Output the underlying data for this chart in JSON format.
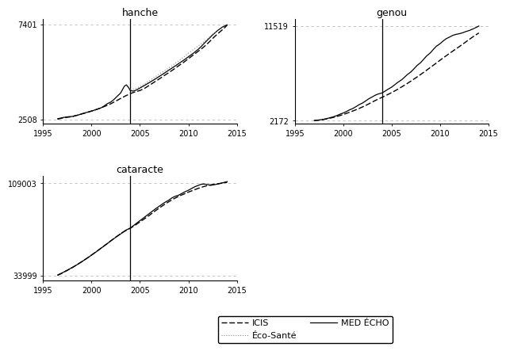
{
  "hanche": {
    "title": "hanche",
    "yticks": [
      2508,
      7401
    ],
    "ylim": [
      2300,
      7700
    ],
    "vline": 2004,
    "xlim": [
      1995,
      2015
    ],
    "xticks": [
      1995,
      2000,
      2005,
      2010,
      2015
    ],
    "hlines": [
      2508,
      7401
    ],
    "med_echo_x": [
      1996.5,
      1997,
      1997.5,
      1998,
      1998.3,
      1998.6,
      1999,
      1999.5,
      2000,
      2000.5,
      2001,
      2001.3,
      2001.6,
      2002,
      2002.3,
      2002.6,
      2003,
      2003.2,
      2003.4,
      2003.6,
      2003.8,
      2004.0,
      2004.3,
      2004.6,
      2005,
      2005.5,
      2006,
      2006.5,
      2007,
      2007.5,
      2008,
      2008.5,
      2009,
      2009.5,
      2010,
      2010.5,
      2011,
      2011.3,
      2011.6,
      2012,
      2012.5,
      2013,
      2013.5,
      2014
    ],
    "med_echo_y": [
      2540,
      2600,
      2640,
      2660,
      2700,
      2730,
      2800,
      2870,
      2940,
      3020,
      3110,
      3200,
      3310,
      3410,
      3530,
      3680,
      3870,
      4050,
      4230,
      4290,
      4170,
      4000,
      3970,
      4020,
      4130,
      4270,
      4420,
      4570,
      4730,
      4890,
      5060,
      5220,
      5390,
      5560,
      5740,
      5920,
      6120,
      6260,
      6420,
      6620,
      6870,
      7090,
      7270,
      7390
    ],
    "icis_x": [
      1996.5,
      1997,
      1997.5,
      1998,
      1998.5,
      1999,
      1999.5,
      2000,
      2000.5,
      2001,
      2001.5,
      2002,
      2002.5,
      2003,
      2003.5,
      2004,
      2004.5,
      2005,
      2005.5,
      2006,
      2006.5,
      2007,
      2007.5,
      2008,
      2008.5,
      2009,
      2009.5,
      2010,
      2010.5,
      2011,
      2011.5,
      2012,
      2012.5,
      2013,
      2013.5,
      2014
    ],
    "icis_y": [
      2520,
      2580,
      2620,
      2650,
      2720,
      2790,
      2860,
      2940,
      3020,
      3110,
      3210,
      3320,
      3450,
      3590,
      3720,
      3840,
      3930,
      4000,
      4120,
      4280,
      4440,
      4600,
      4770,
      4930,
      5100,
      5280,
      5450,
      5640,
      5830,
      6020,
      6210,
      6430,
      6680,
      6920,
      7130,
      7370
    ],
    "eco_sante_x": [
      2004.0,
      2004.5,
      2005,
      2005.5,
      2006,
      2006.5,
      2007,
      2007.5,
      2008,
      2008.5,
      2009,
      2009.5,
      2010,
      2010.5,
      2011,
      2011.5,
      2012,
      2012.5,
      2013
    ],
    "eco_sante_y": [
      4050,
      4100,
      4200,
      4350,
      4510,
      4680,
      4850,
      5010,
      5170,
      5350,
      5530,
      5720,
      5920,
      6110,
      6290,
      6480,
      6680,
      6900,
      7100
    ]
  },
  "genou": {
    "title": "genou",
    "yticks": [
      2172,
      11519
    ],
    "ylim": [
      1900,
      12200
    ],
    "vline": 2004,
    "xlim": [
      1995,
      2015
    ],
    "xticks": [
      1995,
      2000,
      2005,
      2010,
      2015
    ],
    "hlines": [
      2172,
      11519
    ],
    "med_echo_x": [
      1997,
      1997.5,
      1998,
      1998.3,
      1998.6,
      1999,
      1999.3,
      1999.6,
      2000,
      2000.3,
      2000.6,
      2001,
      2001.3,
      2001.6,
      2002,
      2002.3,
      2002.6,
      2003,
      2003.3,
      2003.6,
      2004,
      2004.3,
      2004.6,
      2005,
      2005.3,
      2005.6,
      2006,
      2006.3,
      2006.6,
      2007,
      2007.3,
      2007.6,
      2008,
      2008.3,
      2008.6,
      2009,
      2009.3,
      2009.6,
      2010,
      2010.3,
      2010.6,
      2011,
      2011.3,
      2011.6,
      2012,
      2012.3,
      2012.6,
      2013,
      2013.5,
      2014
    ],
    "med_echo_y": [
      2190,
      2240,
      2310,
      2380,
      2460,
      2560,
      2660,
      2790,
      2930,
      3060,
      3220,
      3380,
      3550,
      3730,
      3920,
      4110,
      4310,
      4520,
      4680,
      4800,
      4900,
      5070,
      5260,
      5480,
      5700,
      5930,
      6180,
      6430,
      6700,
      6990,
      7280,
      7590,
      7900,
      8220,
      8540,
      8860,
      9190,
      9490,
      9760,
      10010,
      10230,
      10420,
      10570,
      10660,
      10740,
      10820,
      10930,
      11050,
      11250,
      11490
    ],
    "icis_x": [
      1997,
      1997.5,
      1998,
      1998.5,
      1999,
      1999.5,
      2000,
      2000.5,
      2001,
      2001.5,
      2002,
      2002.5,
      2003,
      2003.5,
      2004,
      2004.5,
      2005,
      2005.5,
      2006,
      2006.5,
      2007,
      2007.5,
      2008,
      2008.5,
      2009,
      2009.5,
      2010,
      2010.5,
      2011,
      2011.5,
      2012,
      2012.5,
      2013,
      2013.5,
      2014
    ],
    "icis_y": [
      2180,
      2230,
      2300,
      2390,
      2500,
      2630,
      2780,
      2950,
      3130,
      3320,
      3530,
      3760,
      4010,
      4250,
      4470,
      4700,
      4940,
      5200,
      5480,
      5770,
      6080,
      6400,
      6730,
      7070,
      7420,
      7770,
      8130,
      8480,
      8820,
      9150,
      9480,
      9820,
      10170,
      10500,
      10810
    ]
  },
  "cataracte": {
    "title": "cataracte",
    "yticks": [
      33999,
      109003
    ],
    "ylim": [
      30000,
      115000
    ],
    "vline": 2004,
    "xlim": [
      1995,
      2015
    ],
    "xticks": [
      1995,
      2000,
      2005,
      2010,
      2015
    ],
    "hlines": [
      33999,
      109003
    ],
    "med_echo_x": [
      1996.5,
      1997,
      1997.5,
      1998,
      1998.5,
      1999,
      1999.5,
      2000,
      2000.5,
      2001,
      2001.5,
      2002,
      2002.5,
      2003,
      2003.3,
      2003.6,
      2004,
      2004.5,
      2005,
      2005.5,
      2006,
      2006.5,
      2007,
      2007.5,
      2008,
      2008.3,
      2008.6,
      2009,
      2009.3,
      2009.6,
      2010,
      2010.3,
      2010.6,
      2011,
      2011.3,
      2011.6,
      2012,
      2012.3,
      2012.6,
      2013,
      2013.5,
      2014
    ],
    "med_echo_y": [
      34300,
      36200,
      38300,
      40400,
      42700,
      45200,
      47800,
      50500,
      53300,
      56200,
      59100,
      62100,
      65000,
      67700,
      69500,
      71000,
      72500,
      75500,
      78500,
      81500,
      84500,
      87500,
      90300,
      93000,
      95300,
      97000,
      98200,
      99200,
      100500,
      101800,
      103200,
      104500,
      105800,
      107100,
      108000,
      108300,
      107800,
      107200,
      107600,
      108200,
      109200,
      110200
    ],
    "icis_x": [
      1996.5,
      1997,
      1997.5,
      1998,
      1998.5,
      1999,
      1999.5,
      2000,
      2000.5,
      2001,
      2001.5,
      2002,
      2002.5,
      2003,
      2003.5,
      2004,
      2004.5,
      2005,
      2005.5,
      2006,
      2006.5,
      2007,
      2007.5,
      2008,
      2008.5,
      2009,
      2009.5,
      2010,
      2010.5,
      2011,
      2011.5,
      2012,
      2012.5,
      2013,
      2013.5,
      2014
    ],
    "icis_y": [
      34100,
      36000,
      38100,
      40300,
      42700,
      45200,
      47800,
      50600,
      53400,
      56300,
      59200,
      62200,
      65100,
      67900,
      70300,
      72300,
      74800,
      77500,
      80200,
      83000,
      86000,
      88800,
      91500,
      94000,
      96300,
      98300,
      100000,
      101700,
      103200,
      104700,
      106000,
      107100,
      107900,
      108400,
      109000,
      109600
    ]
  },
  "legend": {
    "icis_label": "ICIS",
    "eco_sante_label": "Éco-Santé",
    "med_echo_label": "MED ÉCHO"
  },
  "colors": {
    "med_echo": "#000000",
    "icis": "#000000",
    "eco_sante": "#888888",
    "vline": "#000000",
    "hline": "#bbbbbb"
  }
}
